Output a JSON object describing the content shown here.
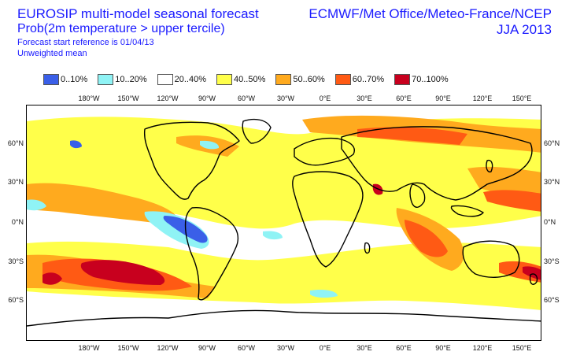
{
  "header": {
    "title_left": "EUROSIP multi-model seasonal forecast",
    "subtitle_left": "Prob(2m temperature > upper tercile)",
    "info_line_1": "Forecast start reference is 01/04/13",
    "info_line_2": "Unweighted mean",
    "title_right": "ECMWF/Met Office/Meteo-France/NCEP",
    "subtitle_right": "JJA 2013"
  },
  "legend": [
    {
      "label": "0..10%",
      "color": "#3a5fe8"
    },
    {
      "label": "10..20%",
      "color": "#8ff3f5"
    },
    {
      "label": "20..40%",
      "color": "#ffffff"
    },
    {
      "label": "40..50%",
      "color": "#ffff4a"
    },
    {
      "label": "50..60%",
      "color": "#ffaa1e"
    },
    {
      "label": "60..70%",
      "color": "#ff5a14"
    },
    {
      "label": "70..100%",
      "color": "#c8001e"
    }
  ],
  "axes": {
    "lon_ticks": [
      "180°W",
      "150°W",
      "120°W",
      "90°W",
      "60°W",
      "30°W",
      "0°E",
      "30°E",
      "60°E",
      "90°E",
      "120°E",
      "150°E"
    ],
    "lat_ticks": [
      "60°N",
      "30°N",
      "0°N",
      "30°S",
      "60°S"
    ]
  }
}
